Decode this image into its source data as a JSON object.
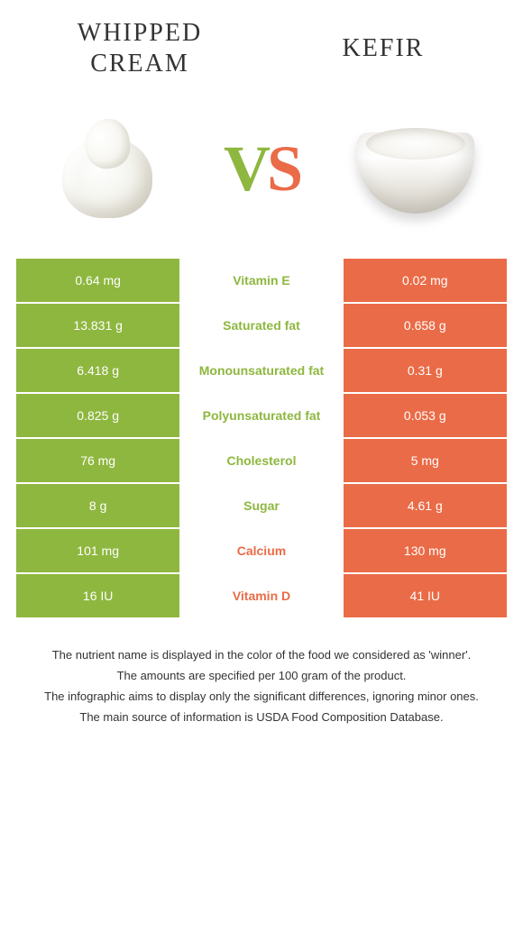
{
  "header": {
    "left_title": "Whipped cream",
    "right_title": "Kefir",
    "vs_v": "V",
    "vs_s": "S"
  },
  "colors": {
    "left": "#8eb73f",
    "right": "#ea6b47",
    "background": "#ffffff",
    "text": "#333333"
  },
  "table": {
    "type": "comparison-table",
    "rows": [
      {
        "left": "0.64 mg",
        "label": "Vitamin E",
        "right": "0.02 mg",
        "winner": "left"
      },
      {
        "left": "13.831 g",
        "label": "Saturated fat",
        "right": "0.658 g",
        "winner": "left"
      },
      {
        "left": "6.418 g",
        "label": "Monounsaturated fat",
        "right": "0.31 g",
        "winner": "left"
      },
      {
        "left": "0.825 g",
        "label": "Polyunsaturated fat",
        "right": "0.053 g",
        "winner": "left"
      },
      {
        "left": "76 mg",
        "label": "Cholesterol",
        "right": "5 mg",
        "winner": "left"
      },
      {
        "left": "8 g",
        "label": "Sugar",
        "right": "4.61 g",
        "winner": "left"
      },
      {
        "left": "101 mg",
        "label": "Calcium",
        "right": "130 mg",
        "winner": "right"
      },
      {
        "left": "16 IU",
        "label": "Vitamin D",
        "right": "41 IU",
        "winner": "right"
      }
    ]
  },
  "footer": {
    "line1": "The nutrient name is displayed in the color of the food we considered as 'winner'.",
    "line2": "The amounts are specified per 100 gram of the product.",
    "line3": "The infographic aims to display only the significant differences, ignoring minor ones.",
    "line4": "The main source of information is USDA Food Composition Database."
  }
}
